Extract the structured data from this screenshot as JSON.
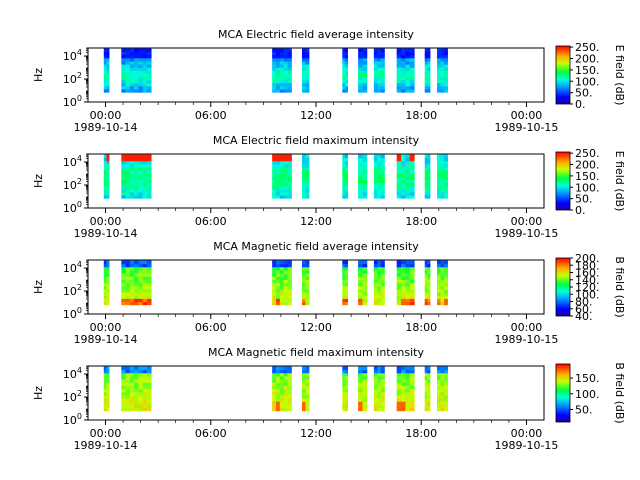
{
  "chart_data": [
    {
      "type": "heatmap",
      "title": "MCA  Electric field average intensity",
      "ylabel": "Hz",
      "yscale": "log",
      "y_ticks": [
        {
          "value": 1,
          "base": "10",
          "exp": "0"
        },
        {
          "value": 100,
          "base": "10",
          "exp": "2"
        },
        {
          "value": 10000,
          "base": "10",
          "exp": "4"
        }
      ],
      "x_ticks": [
        {
          "hour": 0,
          "label": "00:00",
          "date": "1989-10-14"
        },
        {
          "hour": 6,
          "label": "06:00",
          "date": ""
        },
        {
          "hour": 12,
          "label": "12:00",
          "date": ""
        },
        {
          "hour": 18,
          "label": "18:00",
          "date": ""
        },
        {
          "hour": 24,
          "label": "00:00",
          "date": "1989-10-15"
        }
      ],
      "xlim_hours": [
        -1,
        25
      ],
      "colorbar": {
        "label": "E field (dB)",
        "min": 0,
        "max": 255,
        "ticks": [
          {
            "value": 250,
            "label": "250."
          },
          {
            "value": 200,
            "label": "200."
          },
          {
            "value": 150,
            "label": "150."
          },
          {
            "value": 100,
            "label": "100."
          },
          {
            "value": 50,
            "label": "50."
          },
          {
            "value": 0,
            "label": "0."
          }
        ]
      },
      "data_intervals_hours": [
        [
          -0.1,
          0.2
        ],
        [
          0.9,
          2.6
        ],
        [
          9.5,
          10.6
        ],
        [
          11.2,
          11.6
        ],
        [
          13.5,
          13.8
        ],
        [
          14.4,
          14.9
        ],
        [
          15.3,
          15.9
        ],
        [
          16.6,
          17.6
        ],
        [
          18.2,
          18.5
        ],
        [
          18.9,
          19.5
        ]
      ],
      "intensity_profile": "average-electric"
    },
    {
      "type": "heatmap",
      "title": "MCA  Electric field maximum intensity",
      "ylabel": "Hz",
      "yscale": "log",
      "y_ticks": [
        {
          "value": 1,
          "base": "10",
          "exp": "0"
        },
        {
          "value": 100,
          "base": "10",
          "exp": "2"
        },
        {
          "value": 10000,
          "base": "10",
          "exp": "4"
        }
      ],
      "x_ticks": [
        {
          "hour": 0,
          "label": "00:00",
          "date": "1989-10-14"
        },
        {
          "hour": 6,
          "label": "06:00",
          "date": ""
        },
        {
          "hour": 12,
          "label": "12:00",
          "date": ""
        },
        {
          "hour": 18,
          "label": "18:00",
          "date": ""
        },
        {
          "hour": 24,
          "label": "00:00",
          "date": "1989-10-15"
        }
      ],
      "xlim_hours": [
        -1,
        25
      ],
      "colorbar": {
        "label": "E field (dB)",
        "min": 0,
        "max": 255,
        "ticks": [
          {
            "value": 250,
            "label": "250."
          },
          {
            "value": 200,
            "label": "200."
          },
          {
            "value": 150,
            "label": "150."
          },
          {
            "value": 100,
            "label": "100."
          },
          {
            "value": 50,
            "label": "50."
          },
          {
            "value": 0,
            "label": "0."
          }
        ]
      },
      "data_intervals_hours": [
        [
          -0.1,
          0.2
        ],
        [
          0.9,
          2.6
        ],
        [
          9.5,
          10.6
        ],
        [
          11.2,
          11.6
        ],
        [
          13.5,
          13.8
        ],
        [
          14.4,
          14.9
        ],
        [
          15.3,
          15.9
        ],
        [
          16.6,
          17.6
        ],
        [
          18.2,
          18.5
        ],
        [
          18.9,
          19.5
        ]
      ],
      "intensity_profile": "maximum-electric"
    },
    {
      "type": "heatmap",
      "title": "MCA  Magnetic field average intensity",
      "ylabel": "Hz",
      "yscale": "log",
      "y_ticks": [
        {
          "value": 1,
          "base": "10",
          "exp": "0"
        },
        {
          "value": 100,
          "base": "10",
          "exp": "2"
        },
        {
          "value": 10000,
          "base": "10",
          "exp": "4"
        }
      ],
      "x_ticks": [
        {
          "hour": 0,
          "label": "00:00",
          "date": "1989-10-14"
        },
        {
          "hour": 6,
          "label": "06:00",
          "date": ""
        },
        {
          "hour": 12,
          "label": "12:00",
          "date": ""
        },
        {
          "hour": 18,
          "label": "18:00",
          "date": ""
        },
        {
          "hour": 24,
          "label": "00:00",
          "date": "1989-10-15"
        }
      ],
      "xlim_hours": [
        -1,
        25
      ],
      "colorbar": {
        "label": "B field (dB)",
        "min": 40,
        "max": 200,
        "ticks": [
          {
            "value": 200,
            "label": "200."
          },
          {
            "value": 180,
            "label": "180."
          },
          {
            "value": 160,
            "label": "160."
          },
          {
            "value": 140,
            "label": "140."
          },
          {
            "value": 120,
            "label": "120."
          },
          {
            "value": 100,
            "label": "100."
          },
          {
            "value": 80,
            "label": "80."
          },
          {
            "value": 60,
            "label": "60."
          },
          {
            "value": 40,
            "label": "40."
          }
        ]
      },
      "data_intervals_hours": [
        [
          -0.1,
          0.2
        ],
        [
          0.9,
          2.6
        ],
        [
          9.5,
          10.6
        ],
        [
          11.2,
          11.6
        ],
        [
          13.5,
          13.8
        ],
        [
          14.4,
          14.9
        ],
        [
          15.3,
          15.9
        ],
        [
          16.6,
          17.6
        ],
        [
          18.2,
          18.5
        ],
        [
          18.9,
          19.5
        ]
      ],
      "intensity_profile": "average-magnetic"
    },
    {
      "type": "heatmap",
      "title": "MCA  Magnetic field maximum intensity",
      "ylabel": "Hz",
      "yscale": "log",
      "y_ticks": [
        {
          "value": 1,
          "base": "10",
          "exp": "0"
        },
        {
          "value": 100,
          "base": "10",
          "exp": "2"
        },
        {
          "value": 10000,
          "base": "10",
          "exp": "4"
        }
      ],
      "x_ticks": [
        {
          "hour": 0,
          "label": "00:00",
          "date": "1989-10-14"
        },
        {
          "hour": 6,
          "label": "06:00",
          "date": ""
        },
        {
          "hour": 12,
          "label": "12:00",
          "date": ""
        },
        {
          "hour": 18,
          "label": "18:00",
          "date": ""
        },
        {
          "hour": 24,
          "label": "00:00",
          "date": "1989-10-15"
        }
      ],
      "xlim_hours": [
        -1,
        25
      ],
      "colorbar": {
        "label": "B field (dB)",
        "min": 10,
        "max": 195,
        "ticks": [
          {
            "value": 150,
            "label": "150."
          },
          {
            "value": 100,
            "label": "100."
          },
          {
            "value": 50,
            "label": "50."
          }
        ]
      },
      "data_intervals_hours": [
        [
          -0.1,
          0.2
        ],
        [
          0.9,
          2.6
        ],
        [
          9.5,
          10.6
        ],
        [
          11.2,
          11.6
        ],
        [
          13.5,
          13.8
        ],
        [
          14.4,
          14.9
        ],
        [
          15.3,
          15.9
        ],
        [
          16.6,
          17.6
        ],
        [
          18.2,
          18.5
        ],
        [
          18.9,
          19.5
        ]
      ],
      "intensity_profile": "maximum-magnetic"
    }
  ]
}
